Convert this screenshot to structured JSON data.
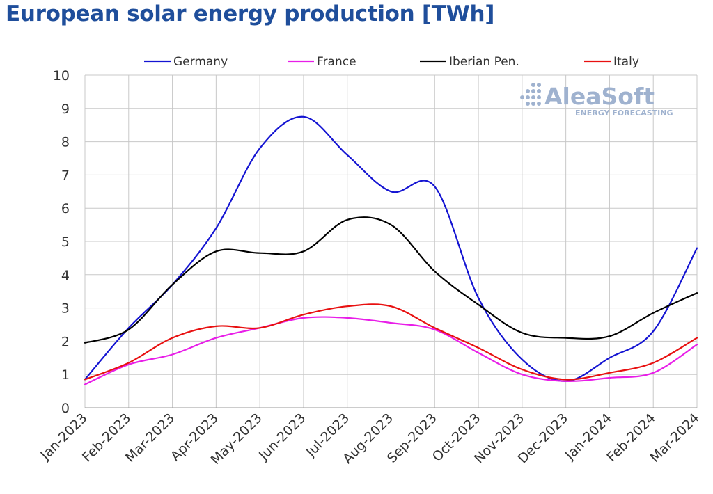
{
  "chart_data": {
    "type": "line",
    "title": "European solar energy production [TWh]",
    "xlabel": "",
    "ylabel": "",
    "ylim": [
      0,
      10
    ],
    "yticks": [
      "0",
      "1",
      "2",
      "3",
      "4",
      "5",
      "6",
      "7",
      "8",
      "9",
      "10"
    ],
    "grid": true,
    "legend_position": "top",
    "categories": [
      "Jan-2023",
      "Feb-2023",
      "Mar-2023",
      "Apr-2023",
      "May-2023",
      "Jun-2023",
      "Jul-2023",
      "Aug-2023",
      "Sep-2023",
      "Oct-2023",
      "Nov-2023",
      "Dec-2023",
      "Jan-2024",
      "Feb-2024",
      "Mar-2024"
    ],
    "series": [
      {
        "name": "Germany",
        "color": "#1414d2",
        "values": [
          0.85,
          2.4,
          3.7,
          5.4,
          7.8,
          8.75,
          7.6,
          6.5,
          6.65,
          3.3,
          1.45,
          0.8,
          1.5,
          2.3,
          4.8
        ]
      },
      {
        "name": "France",
        "color": "#e81ee8",
        "values": [
          0.7,
          1.3,
          1.6,
          2.1,
          2.4,
          2.7,
          2.7,
          2.55,
          2.35,
          1.65,
          1.0,
          0.8,
          0.9,
          1.05,
          1.9
        ]
      },
      {
        "name": "Iberian Pen.",
        "color": "#000000",
        "values": [
          1.95,
          2.35,
          3.7,
          4.7,
          4.65,
          4.7,
          5.65,
          5.5,
          4.1,
          3.1,
          2.25,
          2.1,
          2.15,
          2.85,
          3.45
        ]
      },
      {
        "name": "Italy",
        "color": "#e81010",
        "values": [
          0.85,
          1.35,
          2.1,
          2.45,
          2.4,
          2.8,
          3.05,
          3.05,
          2.4,
          1.8,
          1.15,
          0.85,
          1.05,
          1.35,
          2.1
        ]
      }
    ]
  },
  "watermark": {
    "brand": "AleaSoft",
    "tagline": "ENERGY FORECASTING",
    "color": "#9fb2cf"
  }
}
